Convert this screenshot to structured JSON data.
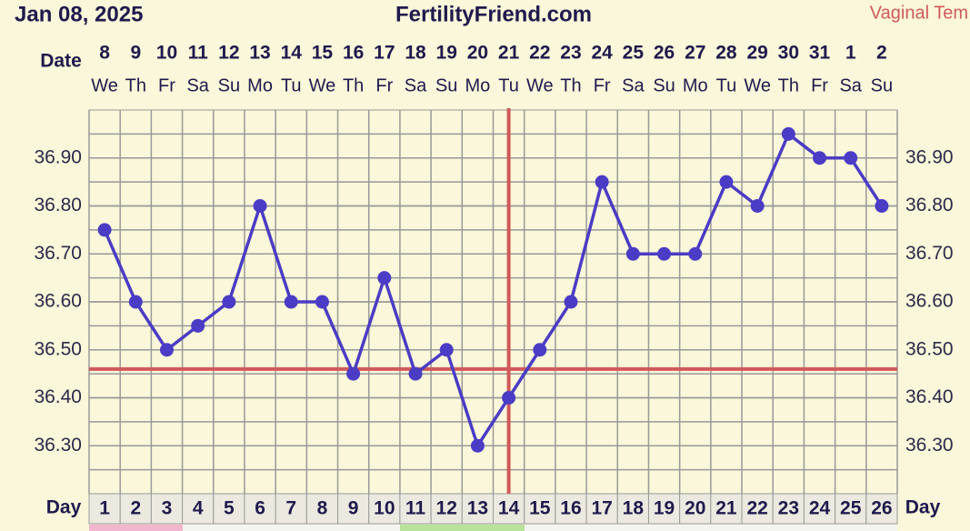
{
  "header": {
    "date": "Jan 08, 2025",
    "site": "FertilityFriend.com",
    "chart_label": "Vaginal Tem"
  },
  "chart_data": {
    "type": "line",
    "date_label": "Date",
    "day_label": "Day",
    "dates": [
      "8",
      "9",
      "10",
      "11",
      "12",
      "13",
      "14",
      "15",
      "16",
      "17",
      "18",
      "19",
      "20",
      "21",
      "22",
      "23",
      "24",
      "25",
      "26",
      "27",
      "28",
      "29",
      "30",
      "31",
      "1",
      "2"
    ],
    "weekdays": [
      "We",
      "Th",
      "Fr",
      "Sa",
      "Su",
      "Mo",
      "Tu",
      "We",
      "Th",
      "Fr",
      "Sa",
      "Su",
      "Mo",
      "Tu",
      "We",
      "Th",
      "Fr",
      "Sa",
      "Su",
      "Mo",
      "Tu",
      "We",
      "Th",
      "Fr",
      "Sa",
      "Su"
    ],
    "x": [
      1,
      2,
      3,
      4,
      5,
      6,
      7,
      8,
      9,
      10,
      11,
      12,
      13,
      14,
      15,
      16,
      17,
      18,
      19,
      20,
      21,
      22,
      23,
      24,
      25,
      26
    ],
    "xlim": [
      0.5,
      26.5
    ],
    "series": [
      {
        "name": "Temperature",
        "color": "#4a3cc4",
        "values": [
          36.75,
          36.6,
          36.5,
          36.55,
          36.6,
          36.8,
          36.6,
          36.6,
          36.45,
          36.65,
          36.45,
          36.5,
          36.3,
          36.4,
          36.5,
          36.6,
          36.85,
          36.7,
          36.7,
          36.7,
          36.85,
          36.8,
          36.95,
          36.9,
          36.9,
          36.8
        ]
      }
    ],
    "ylim": [
      36.2,
      37.0
    ],
    "yticks": [
      {
        "value": 36.3,
        "label": "36.30"
      },
      {
        "value": 36.4,
        "label": "36.40"
      },
      {
        "value": 36.5,
        "label": "36.50"
      },
      {
        "value": 36.6,
        "label": "36.60"
      },
      {
        "value": 36.7,
        "label": "36.70"
      },
      {
        "value": 36.8,
        "label": "36.80"
      },
      {
        "value": 36.9,
        "label": "36.90"
      }
    ],
    "coverline": 36.46,
    "ovulation_x": 14,
    "marker_color": "#d05a5a",
    "grid": true
  }
}
